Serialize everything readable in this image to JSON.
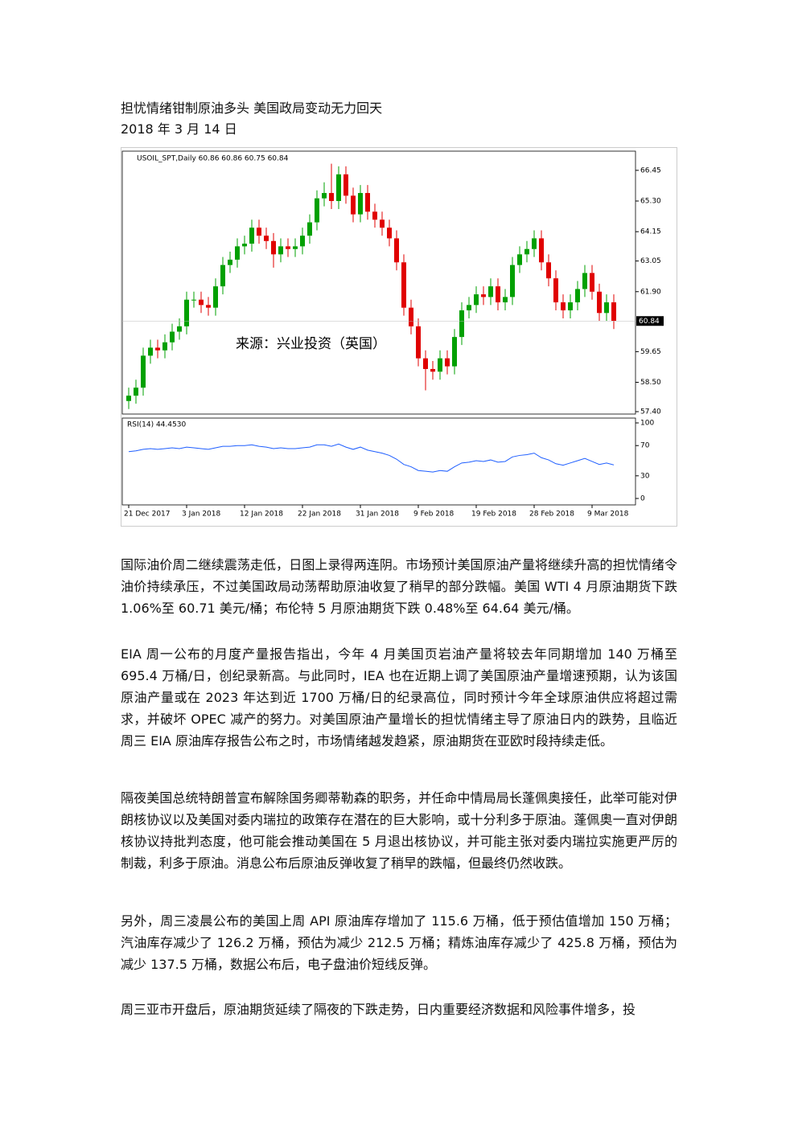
{
  "title": "担忧情绪钳制原油多头 美国政局变动无力回天",
  "date": "2018 年 3 月 14 日",
  "chart_data": {
    "type": "candlestick",
    "header": "USOIL_SPT,Daily 60.86 60.86 60.75 60.84",
    "watermark": "来源：兴业投资（英国）",
    "last_price_label": "60.84",
    "categories": [
      "21 Dec 2017",
      null,
      null,
      null,
      null,
      null,
      null,
      null,
      "3 Jan 2018",
      null,
      null,
      null,
      null,
      null,
      null,
      null,
      "12 Jan 2018",
      null,
      null,
      null,
      null,
      null,
      null,
      null,
      "22 Jan 2018",
      null,
      null,
      null,
      null,
      null,
      null,
      null,
      "31 Jan 2018",
      null,
      null,
      null,
      null,
      null,
      null,
      null,
      "9 Feb 2018",
      null,
      null,
      null,
      null,
      null,
      null,
      null,
      "19 Feb 2018",
      null,
      null,
      null,
      null,
      null,
      null,
      null,
      "28 Feb 2018",
      null,
      null,
      null,
      null,
      null,
      null,
      null,
      "9 Mar 2018",
      null,
      null,
      null
    ],
    "open": [
      57.8,
      58.0,
      58.3,
      59.5,
      59.8,
      59.7,
      60.0,
      60.4,
      60.6,
      61.6,
      61.6,
      61.4,
      61.3,
      62.1,
      62.9,
      63.1,
      63.6,
      63.7,
      64.3,
      64.0,
      63.8,
      63.3,
      63.6,
      63.5,
      63.6,
      64.0,
      64.5,
      65.4,
      65.6,
      65.3,
      66.3,
      65.5,
      64.8,
      65.6,
      64.9,
      64.6,
      64.3,
      63.9,
      63.0,
      61.3,
      60.6,
      59.4,
      59.0,
      58.9,
      59.4,
      59.1,
      60.2,
      61.2,
      61.4,
      61.8,
      61.7,
      62.1,
      61.5,
      61.7,
      62.9,
      63.3,
      63.5,
      63.9,
      63.0,
      62.4,
      61.5,
      61.2,
      61.5,
      62.0,
      62.6,
      61.9,
      61.1,
      61.5
    ],
    "high": [
      58.3,
      58.6,
      59.8,
      60.1,
      60.1,
      60.3,
      60.7,
      60.9,
      61.9,
      61.9,
      61.9,
      61.7,
      62.4,
      63.2,
      63.4,
      63.9,
      64.0,
      64.6,
      64.6,
      64.3,
      64.1,
      63.9,
      63.9,
      63.9,
      64.3,
      64.8,
      65.7,
      66.0,
      66.7,
      66.6,
      66.6,
      65.8,
      65.9,
      65.9,
      65.2,
      64.9,
      64.6,
      64.2,
      63.3,
      61.6,
      60.9,
      59.7,
      59.3,
      59.7,
      59.7,
      60.5,
      61.5,
      61.7,
      62.1,
      62.1,
      62.4,
      62.4,
      62.0,
      63.2,
      63.6,
      63.8,
      64.2,
      64.2,
      63.3,
      62.7,
      61.8,
      61.8,
      62.3,
      62.9,
      62.9,
      62.2,
      61.8,
      61.8
    ],
    "low": [
      57.5,
      57.7,
      58.0,
      59.2,
      59.4,
      59.4,
      59.7,
      60.1,
      60.3,
      61.3,
      61.1,
      61.0,
      61.0,
      61.8,
      62.6,
      62.8,
      63.3,
      63.4,
      63.7,
      63.5,
      62.8,
      63.0,
      63.2,
      63.2,
      63.3,
      63.7,
      64.2,
      65.1,
      65.0,
      65.0,
      65.2,
      64.5,
      64.5,
      64.6,
      64.3,
      64.0,
      63.6,
      62.7,
      61.0,
      60.3,
      59.1,
      58.2,
      58.6,
      58.6,
      58.8,
      58.8,
      59.9,
      60.9,
      61.1,
      61.4,
      61.4,
      61.2,
      61.2,
      61.4,
      62.6,
      63.0,
      63.2,
      62.7,
      62.1,
      61.2,
      60.9,
      60.9,
      61.2,
      61.7,
      61.6,
      60.8,
      60.8,
      60.5
    ],
    "close": [
      58.0,
      58.3,
      59.5,
      59.8,
      59.7,
      60.0,
      60.4,
      60.6,
      61.6,
      61.6,
      61.4,
      61.3,
      62.1,
      62.9,
      63.1,
      63.6,
      63.7,
      64.3,
      64.0,
      63.8,
      63.3,
      63.6,
      63.5,
      63.6,
      64.0,
      64.5,
      65.4,
      65.6,
      65.3,
      66.3,
      65.5,
      64.8,
      65.6,
      64.9,
      64.6,
      64.3,
      63.9,
      63.0,
      61.3,
      60.6,
      59.4,
      59.0,
      58.9,
      59.4,
      59.1,
      60.2,
      61.2,
      61.4,
      61.8,
      61.7,
      62.1,
      61.5,
      61.7,
      62.9,
      63.3,
      63.5,
      63.9,
      63.0,
      62.4,
      61.5,
      61.2,
      61.5,
      62.0,
      62.6,
      61.9,
      61.1,
      61.5,
      60.8
    ],
    "up_color": "#00a000",
    "down_color": "#e00000",
    "ylim": [
      57.31,
      67.17
    ],
    "yticks": [
      66.45,
      {
        "value": 65.3,
        "label": "65.30"
      },
      64.15,
      63.05,
      {
        "value": 61.9,
        "label": "61.90"
      },
      59.65,
      {
        "value": 58.5,
        "label": "58.50"
      },
      {
        "value": 57.4,
        "label": "57.40"
      }
    ],
    "rsi": {
      "label": "RSI(14) 44.4530",
      "color": "#1e5eff",
      "values": [
        62,
        63,
        65,
        66,
        65,
        66,
        67,
        66,
        68,
        67,
        66,
        65,
        67,
        69,
        69,
        70,
        70,
        71,
        69,
        68,
        66,
        67,
        66,
        66,
        67,
        68,
        71,
        71,
        69,
        72,
        68,
        65,
        68,
        64,
        62,
        60,
        57,
        52,
        45,
        42,
        37,
        36,
        35,
        37,
        36,
        42,
        47,
        48,
        50,
        49,
        51,
        48,
        49,
        55,
        57,
        58,
        60,
        54,
        51,
        46,
        44,
        47,
        50,
        53,
        49,
        45,
        47,
        44.45
      ],
      "ylim": [
        -8.5,
        106.4
      ],
      "yticks": [
        100,
        70,
        30,
        0
      ]
    }
  },
  "paragraphs": [
    "国际油价周二继续震荡走低，日图上录得两连阴。市场预计美国原油产量将继续升高的担忧情绪令油价持续承压，不过美国政局动荡帮助原油收复了稍早的部分跌幅。美国 WTI 4 月原油期货下跌 1.06%至 60.71 美元/桶；布伦特 5 月原油期货下跌 0.48%至 64.64 美元/桶。",
    "EIA 周一公布的月度产量报告指出，今年 4 月美国页岩油产量将较去年同期增加 140 万桶至 695.4 万桶/日，创纪录新高。与此同时，IEA 也在近期上调了美国原油产量增速预期，认为该国原油产量或在 2023 年达到近 1700 万桶/日的纪录高位，同时预计今年全球原油供应将超过需求，并破坏 OPEC 减产的努力。对美国原油产量增长的担忧情绪主导了原油日内的跌势，且临近周三 EIA 原油库存报告公布之时，市场情绪越发趋紧，原油期货在亚欧时段持续走低。",
    "隔夜美国总统特朗普宣布解除国务卿蒂勒森的职务，并任命中情局局长蓬佩奥接任，此举可能对伊朗核协议以及美国对委内瑞拉的政策存在潜在的巨大影响，或十分利多于原油。蓬佩奥一直对伊朗核协议持批判态度，他可能会推动美国在 5 月退出核协议，并可能主张对委内瑞拉实施更严厉的制裁，利多于原油。消息公布后原油反弹收复了稍早的跌幅，但最终仍然收跌。",
    "另外，周三凌晨公布的美国上周 API 原油库存增加了 115.6 万桶，低于预估值增加 150 万桶；汽油库存减少了 126.2 万桶，预估为减少 212.5 万桶；精炼油库存减少了 425.8 万桶，预估为减少 137.5 万桶，数据公布后，电子盘油价短线反弹。",
    "周三亚市开盘后，原油期货延续了隔夜的下跌走势，日内重要经济数据和风险事件增多，投"
  ]
}
